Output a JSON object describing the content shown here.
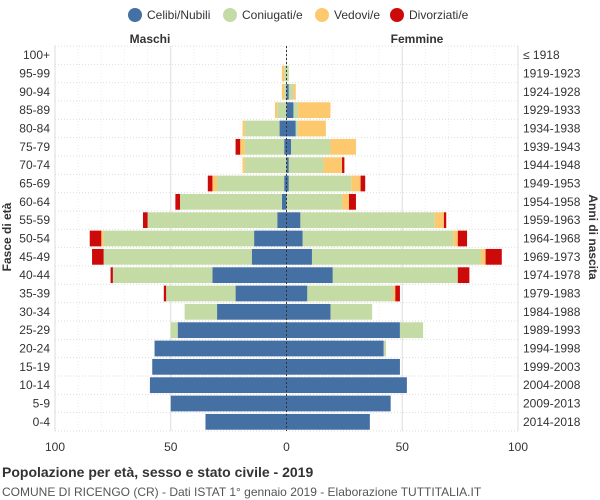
{
  "chart_data": {
    "type": "bar",
    "orientation": "horizontal-pyramid",
    "title": "Popolazione per età, sesso e stato civile - 2019",
    "subtitle": "COMUNE DI RICENGO (CR) - Dati ISTAT 1° gennaio 2019 - Elaborazione TUTTITALIA.IT",
    "left_header": "Maschi",
    "right_header": "Femmine",
    "ylabel_left": "Fasce di età",
    "ylabel_right": "Anni di nascita",
    "xlim": [
      -100,
      100
    ],
    "x_ticks": [
      -100,
      -50,
      0,
      50,
      100
    ],
    "x_tick_labels": [
      "100",
      "50",
      "0",
      "50",
      "100"
    ],
    "legend_position": "top",
    "legend": [
      "Celibi/Nubili",
      "Coniugati/e",
      "Vedovi/e",
      "Divorziati/e"
    ],
    "colors": {
      "celibi": "#4570a4",
      "coniugati": "#c5dba6",
      "vedovi": "#fcc96e",
      "divorziati": "#cc0a0a"
    },
    "age_groups": [
      "100+",
      "95-99",
      "90-94",
      "85-89",
      "80-84",
      "75-79",
      "70-74",
      "65-69",
      "60-64",
      "55-59",
      "50-54",
      "45-49",
      "40-44",
      "35-39",
      "30-34",
      "25-29",
      "20-24",
      "15-19",
      "10-14",
      "5-9",
      "0-4"
    ],
    "birth_years": [
      "≤ 1918",
      "1919-1923",
      "1924-1928",
      "1929-1933",
      "1934-1938",
      "1939-1943",
      "1944-1948",
      "1949-1953",
      "1954-1958",
      "1959-1963",
      "1964-1968",
      "1969-1973",
      "1974-1978",
      "1979-1983",
      "1984-1988",
      "1989-1993",
      "1994-1998",
      "1999-2003",
      "2004-2008",
      "2009-2013",
      "2014-2018"
    ],
    "males": {
      "celibi": [
        0,
        0,
        0,
        0,
        3,
        1,
        0,
        1,
        2,
        4,
        14,
        15,
        32,
        22,
        30,
        47,
        57,
        58,
        59,
        50,
        35
      ],
      "coniugati": [
        0,
        1,
        1,
        4,
        15,
        17,
        18,
        29,
        44,
        56,
        65,
        64,
        43,
        30,
        14,
        3,
        0,
        0,
        0,
        0,
        0
      ],
      "vedovi": [
        0,
        1,
        1,
        1,
        1,
        2,
        1,
        2,
        0,
        0,
        1,
        0,
        0,
        0,
        0,
        0,
        0,
        0,
        0,
        0,
        0
      ],
      "divorziati": [
        0,
        0,
        0,
        0,
        0,
        2,
        0,
        2,
        2,
        2,
        5,
        5,
        1,
        1,
        0,
        0,
        0,
        0,
        0,
        0,
        0
      ]
    },
    "females": {
      "nubili": [
        0,
        0,
        1,
        3,
        4,
        2,
        1,
        1,
        0,
        6,
        7,
        11,
        20,
        9,
        19,
        49,
        42,
        49,
        52,
        45,
        36
      ],
      "coniugate": [
        0,
        1,
        2,
        2,
        1,
        17,
        15,
        27,
        24,
        58,
        65,
        73,
        54,
        37,
        18,
        10,
        1,
        0,
        0,
        0,
        0
      ],
      "vedove": [
        0,
        0,
        1,
        14,
        12,
        11,
        8,
        4,
        3,
        4,
        2,
        2,
        0,
        1,
        0,
        0,
        0,
        0,
        0,
        0,
        0
      ],
      "divorziate": [
        0,
        0,
        0,
        0,
        0,
        0,
        1,
        2,
        3,
        1,
        4,
        7,
        5,
        2,
        0,
        0,
        0,
        0,
        0,
        0,
        0
      ]
    }
  }
}
